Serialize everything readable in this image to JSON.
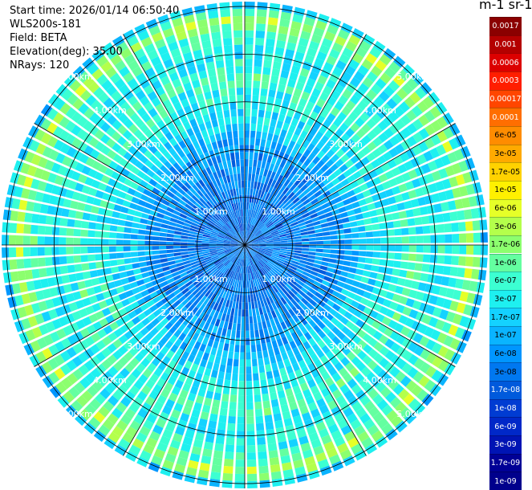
{
  "header": {
    "start_time": "Start time: 2026/01/14 06:50:40",
    "instrument": "WLS200s-181",
    "field": "Field: BETA",
    "elevation": "Elevation(deg): 35.00",
    "nrays": "NRays: 120"
  },
  "colorbar": {
    "title": "m-1 sr-1",
    "labels": [
      "0.0017",
      "0.001",
      "0.0006",
      "0.0003",
      "0.00017",
      "0.0001",
      "6e-05",
      "3e-05",
      "1.7e-05",
      "1e-05",
      "6e-06",
      "3e-06",
      "1.7e-06",
      "1e-06",
      "6e-07",
      "3e-07",
      "1.7e-07",
      "1e-07",
      "6e-08",
      "3e-08",
      "1.7e-08",
      "1e-08",
      "6e-09",
      "3e-09",
      "1.7e-09",
      "1e-09"
    ],
    "colors": [
      "#8b0000",
      "#b40000",
      "#dc0000",
      "#ff1e00",
      "#ff4600",
      "#ff6e00",
      "#ff8c00",
      "#ffaa00",
      "#ffd200",
      "#fff000",
      "#e6ff28",
      "#b4ff4b",
      "#8cff6e",
      "#64ffa0",
      "#3cffd2",
      "#1ef0f0",
      "#14d2ff",
      "#0ab4ff",
      "#0096ff",
      "#0078f0",
      "#005adc",
      "#003cd2",
      "#0028c8",
      "#0014b4",
      "#000096",
      "#00008c"
    ]
  },
  "chart_data": {
    "type": "heatmap",
    "projection": "polar-ppi",
    "title": "",
    "field": "BETA",
    "units": "m-1 sr-1",
    "scale": "log",
    "nrays": 120,
    "elevation_deg": 35.0,
    "range_rings_km": [
      1.0,
      2.0,
      3.0,
      4.0,
      5.0
    ],
    "ring_labels": [
      "1.00km",
      "2.00km",
      "3.00km",
      "4.00km",
      "5.00km"
    ],
    "max_range_km": 5.1,
    "spokes_deg": [
      0,
      30,
      60,
      90,
      120,
      150,
      180,
      210,
      240,
      270,
      300,
      330
    ],
    "radial_profile": [
      {
        "range_km": 0.0,
        "beta": 3e-08
      },
      {
        "range_km": 1.0,
        "beta": 3e-08
      },
      {
        "range_km": 2.0,
        "beta": 6e-08
      },
      {
        "range_km": 2.5,
        "beta": 1.7e-07
      },
      {
        "range_km": 3.0,
        "beta": 3e-07
      },
      {
        "range_km": 3.5,
        "beta": 6e-07
      },
      {
        "range_km": 4.0,
        "beta": 3e-07
      },
      {
        "range_km": 4.5,
        "beta": 6e-07
      },
      {
        "range_km": 4.75,
        "beta": 3e-06
      },
      {
        "range_km": 5.0,
        "beta": 3e-07
      },
      {
        "range_km": 5.1,
        "beta": 3e-08
      }
    ]
  }
}
